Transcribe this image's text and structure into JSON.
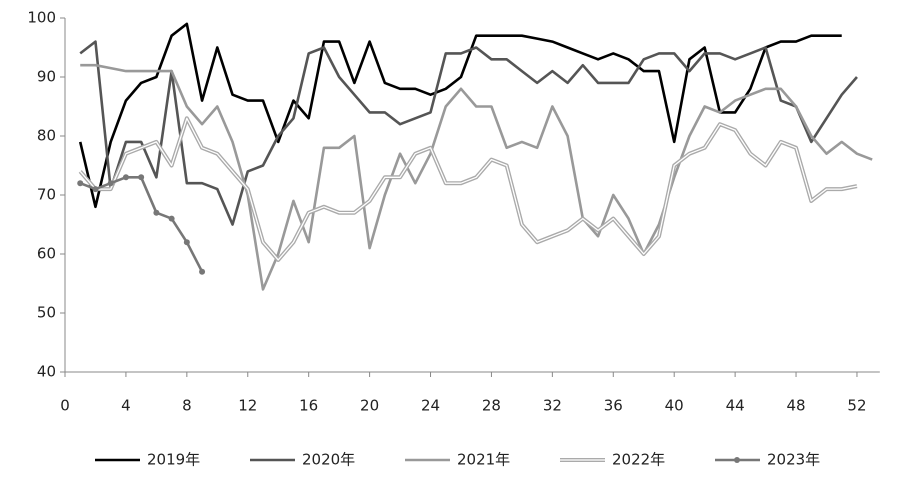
{
  "chart_data": {
    "type": "line",
    "x": [
      1,
      2,
      3,
      4,
      5,
      6,
      7,
      8,
      9,
      10,
      11,
      12,
      13,
      14,
      15,
      16,
      17,
      18,
      19,
      20,
      21,
      22,
      23,
      24,
      25,
      26,
      27,
      28,
      29,
      30,
      31,
      32,
      33,
      34,
      35,
      36,
      37,
      38,
      39,
      40,
      41,
      42,
      43,
      44,
      45,
      46,
      47,
      48,
      49,
      50,
      51,
      52,
      53
    ],
    "series": [
      {
        "name": "2019年",
        "color": "#000000",
        "values": [
          79,
          68,
          79,
          86,
          89,
          90,
          97,
          99,
          86,
          95,
          87,
          86,
          86,
          79,
          86,
          83,
          96,
          96,
          89,
          96,
          89,
          88,
          88,
          87,
          88,
          90,
          97,
          97,
          97,
          97,
          96.5,
          96,
          95,
          94,
          93,
          94,
          93,
          91,
          91,
          79,
          93,
          95,
          84,
          84,
          88,
          95,
          96,
          96,
          97,
          97,
          97,
          null,
          null
        ]
      },
      {
        "name": "2020年",
        "color": "#555555",
        "values": [
          94,
          96,
          71,
          79,
          79,
          73,
          91,
          72,
          72,
          71,
          65,
          74,
          75,
          80,
          83,
          94,
          95,
          90,
          87,
          84,
          84,
          82,
          83,
          84,
          94,
          94,
          95,
          93,
          93,
          91,
          89,
          91,
          89,
          92,
          89,
          89,
          89,
          93,
          94,
          94,
          91,
          94,
          94,
          93,
          94,
          95,
          86,
          85,
          79,
          83,
          87,
          90,
          null
        ]
      },
      {
        "name": "2021年",
        "color": "#999999",
        "values": [
          92,
          92,
          91.5,
          91,
          91,
          91,
          91,
          85,
          82,
          85,
          79,
          70,
          54,
          60,
          69,
          62,
          78,
          78,
          80,
          61,
          70,
          77,
          72,
          77,
          85,
          88,
          85,
          85,
          78,
          79,
          78,
          85,
          80,
          66,
          63,
          70,
          66,
          60,
          65,
          73,
          80,
          85,
          84,
          86,
          87,
          88,
          88,
          85,
          80,
          77,
          79,
          77,
          76
        ]
      },
      {
        "name": "2022年",
        "color": "#aaaaaa",
        "double": true,
        "values": [
          74,
          71,
          71,
          77,
          78,
          79,
          75,
          83,
          78,
          77,
          74,
          71,
          62,
          59,
          62,
          67,
          68,
          67,
          67,
          69,
          73,
          73,
          77,
          78,
          72,
          72,
          73,
          76,
          75,
          65,
          62,
          63,
          64,
          66,
          64,
          66,
          63,
          60,
          63,
          75,
          77,
          78,
          82,
          81,
          77,
          75,
          79,
          78,
          69,
          71,
          71,
          71.5,
          null
        ]
      },
      {
        "name": "2023年",
        "color": "#777777",
        "markers": true,
        "values": [
          72,
          71,
          72,
          73,
          73,
          67,
          66,
          62,
          57,
          null,
          null,
          null,
          null,
          null,
          null,
          null,
          null,
          null,
          null,
          null,
          null,
          null,
          null,
          null,
          null,
          null,
          null,
          null,
          null,
          null,
          null,
          null,
          null,
          null,
          null,
          null,
          null,
          null,
          null,
          null,
          null,
          null,
          null,
          null,
          null,
          null,
          null,
          null,
          null,
          null,
          null,
          null,
          null
        ]
      }
    ],
    "xlim": [
      0,
      53.5
    ],
    "xticks": [
      0,
      4,
      8,
      12,
      16,
      20,
      24,
      28,
      32,
      36,
      40,
      44,
      48,
      52
    ],
    "ylim": [
      40,
      100
    ],
    "yticks": [
      40,
      50,
      60,
      70,
      80,
      90,
      100
    ],
    "legend": "bottom"
  }
}
